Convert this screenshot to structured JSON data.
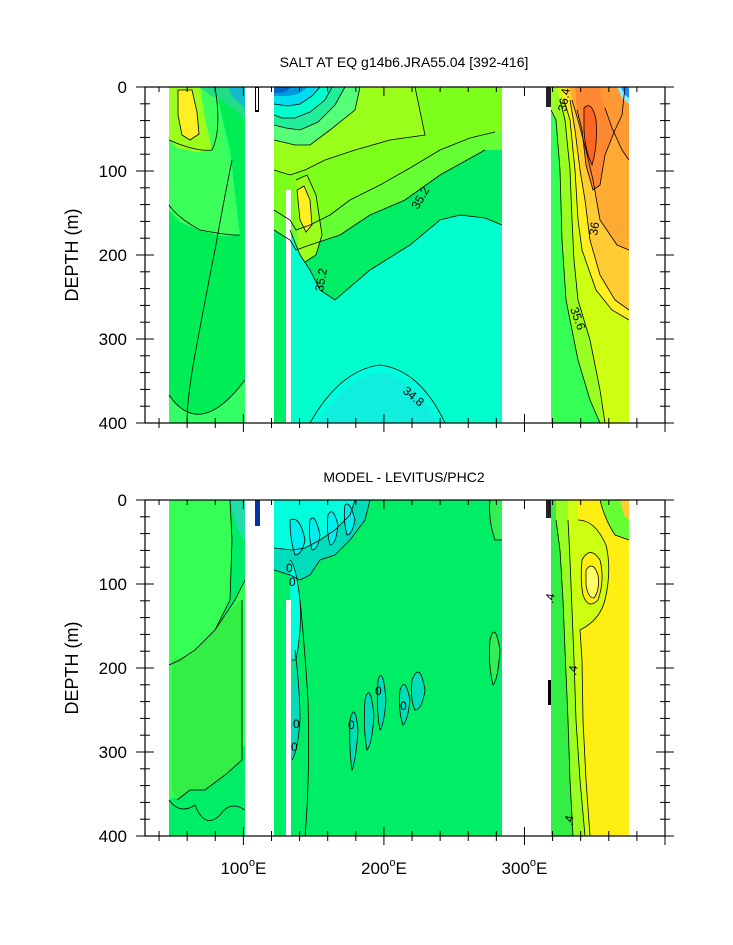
{
  "chart_data": [
    {
      "type": "contour",
      "title": "SALT AT EQ g14b6.JRA55.04 [392-416]",
      "xlabel": "",
      "ylabel": "DEPTH (m)",
      "xlim": [
        30,
        400
      ],
      "ylim": [
        0,
        400
      ],
      "y_inverted": true,
      "x_tick_values": [
        100,
        200,
        300
      ],
      "y_tick_values": [
        0,
        100,
        200,
        300,
        400
      ],
      "contour_labels": [
        {
          "text": "36.4",
          "x": 313,
          "y": 25
        },
        {
          "text": "35.2",
          "x": 208,
          "y": 138
        },
        {
          "text": "35.2",
          "x": 136,
          "y": 225
        },
        {
          "text": "36",
          "x": 338,
          "y": 190
        },
        {
          "text": "35.6",
          "x": 333,
          "y": 295
        },
        {
          "text": "34.8",
          "x": 196,
          "y": 370
        }
      ]
    },
    {
      "type": "contour",
      "title": "MODEL - LEVITUS/PHC2",
      "xlabel": "",
      "ylabel": "DEPTH (m)",
      "xlim": [
        30,
        400
      ],
      "ylim": [
        0,
        400
      ],
      "y_inverted": true,
      "x_tick_values": [
        100,
        200,
        300
      ],
      "y_tick_values": [
        0,
        100,
        200,
        300,
        400
      ],
      "contour_labels": [
        {
          "text": "0",
          "x": 128,
          "y": 85
        },
        {
          "text": "0",
          "x": 131,
          "y": 100
        },
        {
          "text": "0",
          "x": 135,
          "y": 265
        },
        {
          "text": "0",
          "x": 133,
          "y": 295
        },
        {
          "text": "0",
          "x": 173,
          "y": 270
        },
        {
          "text": "0",
          "x": 193,
          "y": 230
        },
        {
          "text": "0",
          "x": 212,
          "y": 247
        },
        {
          "text": ".4",
          "x": 302,
          "y": 122
        },
        {
          "text": ".4",
          "x": 317,
          "y": 205
        },
        {
          "text": ".4",
          "x": 313,
          "y": 380
        }
      ]
    }
  ],
  "axes": {
    "x_tick_labels": [
      {
        "base": "100",
        "sup": "o",
        "suffix": "E"
      },
      {
        "base": "200",
        "sup": "o",
        "suffix": "E"
      },
      {
        "base": "300",
        "sup": "o",
        "suffix": "E"
      }
    ],
    "y_tick_labels": [
      "0",
      "100",
      "200",
      "300",
      "400"
    ]
  }
}
